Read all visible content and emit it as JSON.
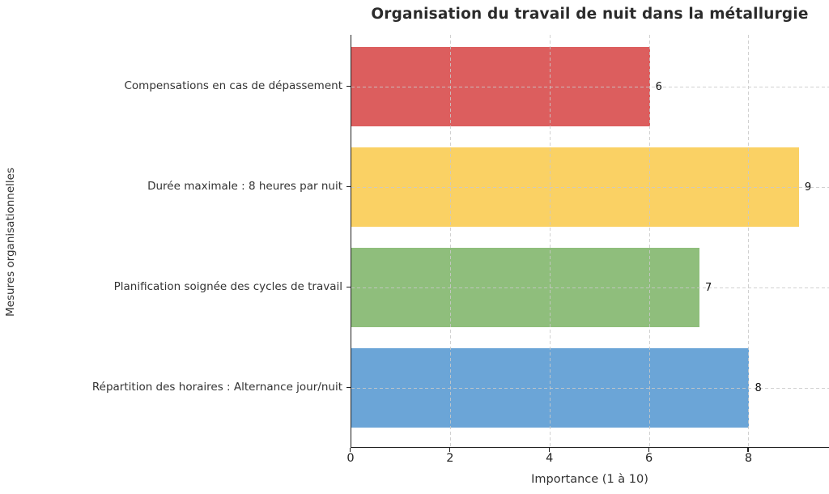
{
  "chart_data": {
    "type": "bar",
    "orientation": "horizontal",
    "title": "Organisation du travail de nuit dans la métallurgie",
    "xlabel": "Importance (1 à 10)",
    "ylabel": "Mesures organisationnelles",
    "categories": [
      "Compensations en cas de dépassement",
      "Durée maximale : 8 heures par nuit",
      "Planification soignée des cycles de travail",
      "Répartition des horaires : Alternance jour/nuit"
    ],
    "values": [
      6,
      9,
      7,
      8
    ],
    "value_labels": [
      "6",
      "9",
      "7",
      "8"
    ],
    "bar_colors": [
      "#DC5E5E",
      "#FAD164",
      "#8FBE7C",
      "#6BA5D7"
    ],
    "xlim": [
      0,
      9.62
    ],
    "xticks": [
      0,
      2,
      4,
      6,
      8
    ],
    "grid": "dashed-both-axes",
    "grid_color": "#c9c9c9",
    "spine_color": "#1f1f1f",
    "text_color": "#333333",
    "background_color": "#ffffff"
  }
}
